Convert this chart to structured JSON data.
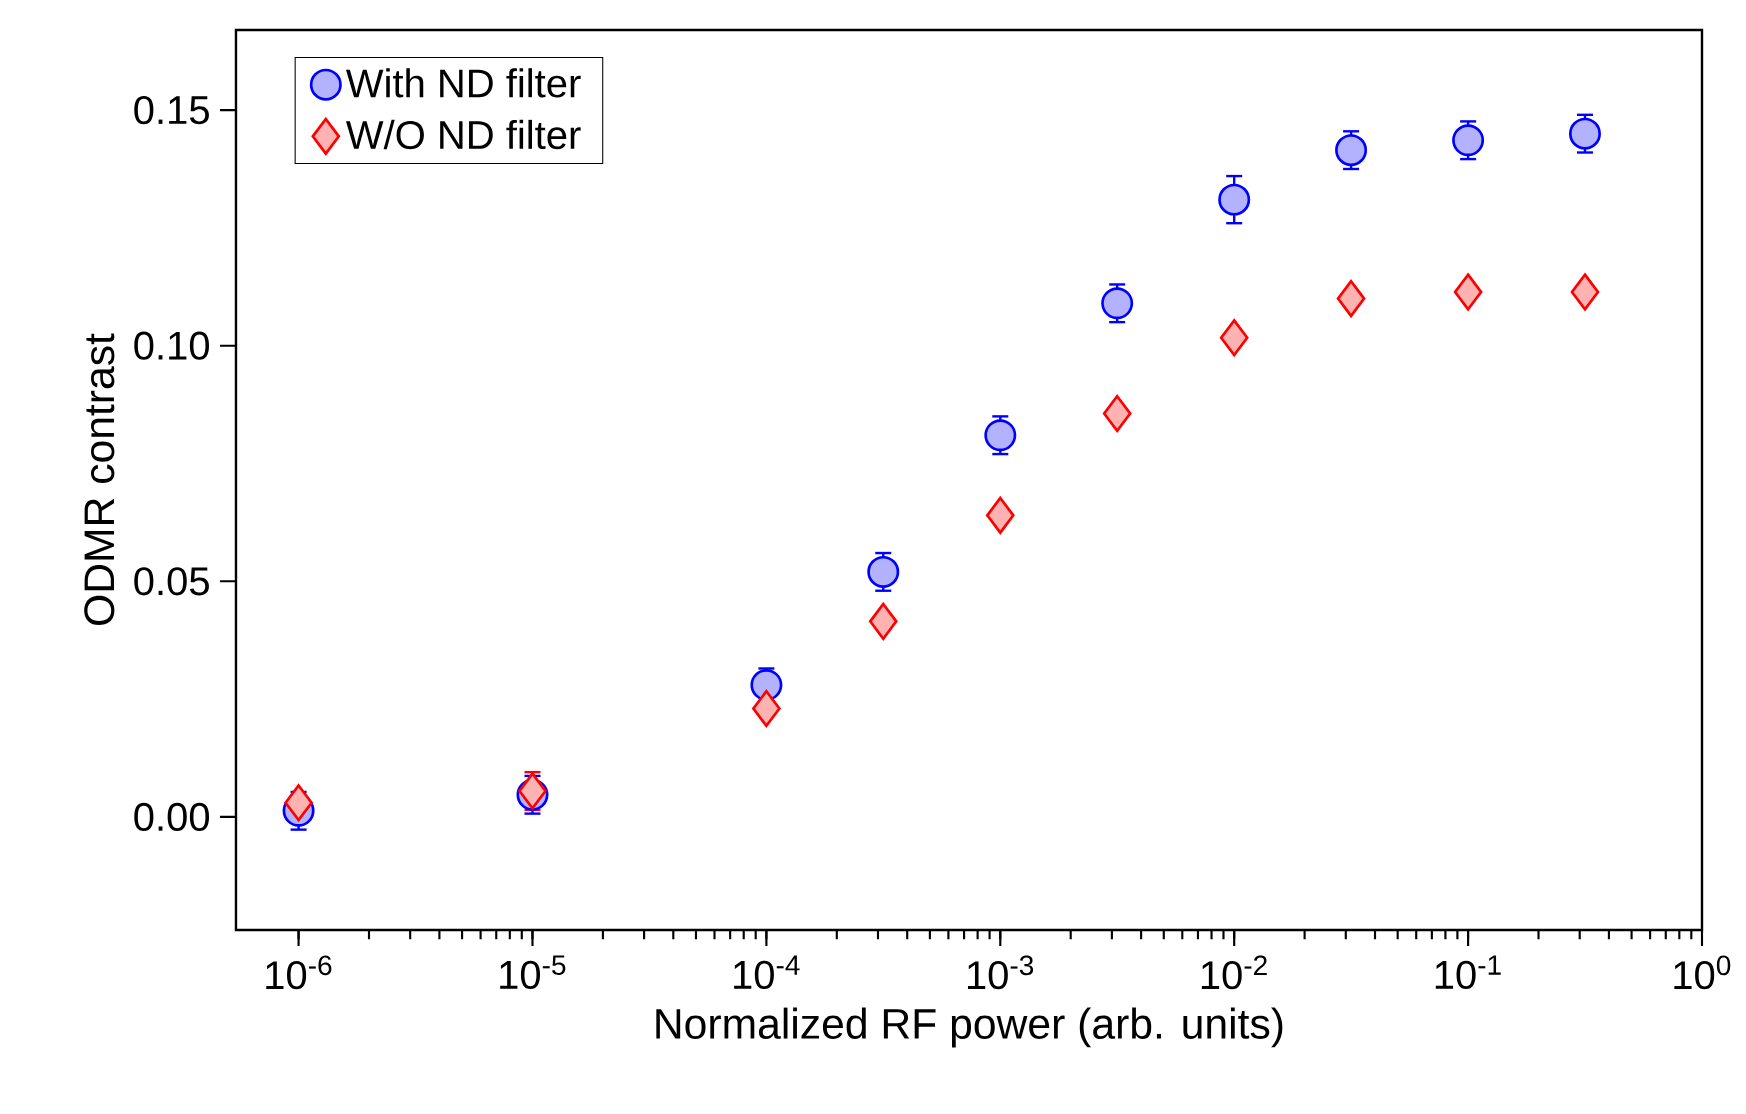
{
  "chart_data": {
    "type": "scatter",
    "xlabel": "Normalized RF power (arb. units)",
    "ylabel": "ODMR contrast",
    "log": "x",
    "legend": "top left",
    "xlim": [
      5.4e-07,
      1
    ],
    "ylim": [
      -0.024,
      0.167
    ],
    "xticks": [
      {
        "value": 1e-06,
        "label": "10$^{-6}$"
      },
      {
        "value": 1e-05,
        "label": "10$^{-5}$"
      },
      {
        "value": 0.0001,
        "label": "10$^{-4}$"
      },
      {
        "value": 0.001,
        "label": "10$^{-3}$"
      },
      {
        "value": 0.01,
        "label": "10$^{-2}$"
      },
      {
        "value": 0.1,
        "label": "10$^{-1}$"
      },
      {
        "value": 1,
        "label": "10$^{0}$"
      }
    ],
    "yticks": [
      {
        "value": 0,
        "label": "0.00"
      },
      {
        "value": 0.05,
        "label": "0.05"
      },
      {
        "value": 0.1,
        "label": "0.10"
      },
      {
        "value": 0.15,
        "label": "0.15"
      }
    ],
    "series": [
      {
        "name": "With ND filter",
        "color": "#0000ff",
        "marker": "circle",
        "x": [
          1e-06,
          1e-05,
          0.0001,
          0.000316,
          0.001,
          0.00316,
          0.01,
          0.0316,
          0.1,
          0.316
        ],
        "values": [
          0.0013,
          0.0047,
          0.028,
          0.052,
          0.081,
          0.109,
          0.131,
          0.1415,
          0.1436,
          0.145
        ],
        "errors": [
          0.004,
          0.004,
          0.0035,
          0.004,
          0.004,
          0.004,
          0.005,
          0.004,
          0.004,
          0.004
        ]
      },
      {
        "name": "W/O ND filter",
        "color": "#ff0000",
        "marker": "diamond",
        "x": [
          1e-06,
          1e-05,
          0.0001,
          0.000316,
          0.001,
          0.00316,
          0.01,
          0.0316,
          0.1,
          0.316
        ],
        "values": [
          0.003,
          0.0055,
          0.023,
          0.0415,
          0.064,
          0.0856,
          0.1017,
          0.11,
          0.1114,
          0.1114
        ],
        "errors": [
          null,
          0.004,
          0.0015,
          0.0015,
          0.0015,
          0.0015,
          0.0015,
          0.0015,
          0.0015,
          0.0015
        ]
      }
    ]
  }
}
